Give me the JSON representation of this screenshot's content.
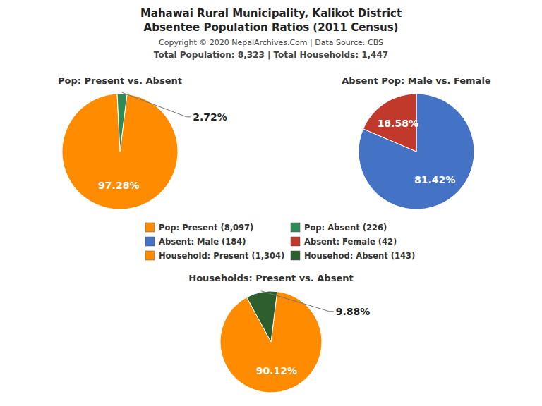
{
  "title": "Mahawai Rural Municipality, Kalikot District",
  "subtitle": "Absentee Population Ratios (2011 Census)",
  "annotations": [
    "Copyright © 2020 NepalArchives.Com | Data Source: CBS",
    "Total Population: 8,323 | Total Households: 1,447"
  ],
  "chart_data": [
    {
      "type": "pie",
      "title": "Pop: Present vs. Absent",
      "categories": [
        "Pop: Present (8,097)",
        "Pop: Absent (226)"
      ],
      "values": [
        97.28,
        2.72
      ],
      "value_labels": [
        "97.28%",
        "2.72%"
      ],
      "colors": [
        "#ff8c00",
        "#2e8b57"
      ],
      "data_labels": true
    },
    {
      "type": "pie",
      "title": "Absent Pop: Male vs. Female",
      "categories": [
        "Absent: Male (184)",
        "Absent: Female (42)"
      ],
      "values": [
        81.42,
        18.58
      ],
      "value_labels": [
        "81.42%",
        "18.58%"
      ],
      "colors": [
        "#4472c4",
        "#c0392b"
      ],
      "data_labels": true
    },
    {
      "type": "pie",
      "title": "Households: Present vs. Absent",
      "categories": [
        "Household: Present (1,304)",
        "Househod: Absent (143)"
      ],
      "values": [
        90.12,
        9.88
      ],
      "value_labels": [
        "90.12%",
        "9.88%"
      ],
      "colors": [
        "#ff8c00",
        "#2e5e2e"
      ],
      "data_labels": true
    }
  ]
}
